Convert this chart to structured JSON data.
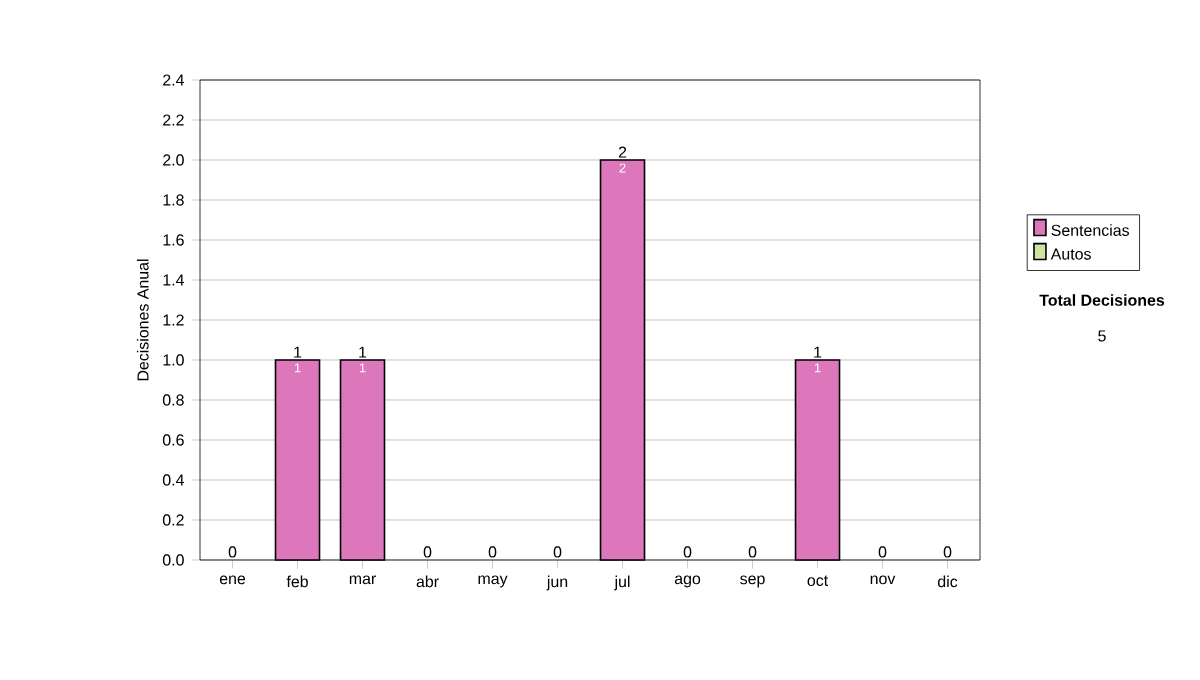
{
  "chart_data": {
    "type": "bar",
    "stacked": true,
    "ylabel": "Decisiones Anual",
    "categories": [
      "ene",
      "feb",
      "mar",
      "abr",
      "may",
      "jun",
      "jul",
      "ago",
      "sep",
      "oct",
      "nov",
      "dic"
    ],
    "series": [
      {
        "name": "Sentencias",
        "color": "#dd77bb",
        "values": [
          0,
          1,
          1,
          0,
          0,
          0,
          2,
          0,
          0,
          1,
          0,
          0
        ],
        "value_labels": [
          null,
          "1",
          "1",
          null,
          null,
          null,
          "2",
          null,
          null,
          "1",
          null,
          null
        ]
      },
      {
        "name": "Autos",
        "color": "#cce6a0",
        "values": [
          0,
          0,
          0,
          0,
          0,
          0,
          0,
          0,
          0,
          0,
          0,
          0
        ]
      }
    ],
    "totals": [
      "0",
      "1",
      "1",
      "0",
      "0",
      "0",
      "2",
      "0",
      "0",
      "1",
      "0",
      "0"
    ],
    "ylim": [
      0,
      2.4
    ],
    "yticks": [
      {
        "value": 0,
        "label": "0.0"
      },
      {
        "value": 0.2,
        "label": "0.2"
      },
      {
        "value": 0.4,
        "label": "0.4"
      },
      {
        "value": 0.6,
        "label": "0.6"
      },
      {
        "value": 0.8,
        "label": "0.8"
      },
      {
        "value": 1,
        "label": "1.0"
      },
      {
        "value": 1.2,
        "label": "1.2"
      },
      {
        "value": 1.4,
        "label": "1.4"
      },
      {
        "value": 1.6,
        "label": "1.6"
      },
      {
        "value": 1.8,
        "label": "1.8"
      },
      {
        "value": 2,
        "label": "2.0"
      },
      {
        "value": 2.2,
        "label": "2.2"
      },
      {
        "value": 2.4,
        "label": "2.4"
      }
    ],
    "grid": "y",
    "legend": "right",
    "annotations": [
      "**Total Decisiones**",
      "5"
    ]
  }
}
